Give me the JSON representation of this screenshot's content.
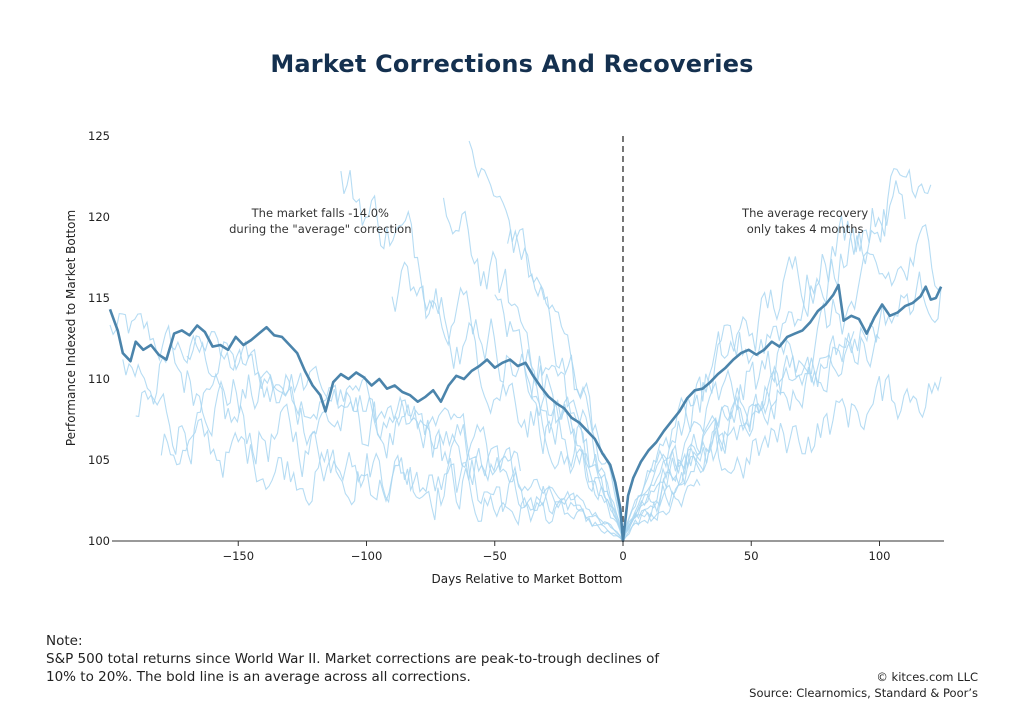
{
  "title": "Market Corrections And Recoveries",
  "chart_data": {
    "type": "line",
    "xlabel": "Days Relative to Market Bottom",
    "ylabel": "Performance Indexed to Market Bottom",
    "xlim": [
      -200,
      126
    ],
    "ylim": [
      100,
      125
    ],
    "xticks": [
      -150,
      -100,
      -50,
      0,
      50,
      100
    ],
    "xtick_labels": [
      "−150",
      "−100",
      "−50",
      "0",
      "50",
      "100"
    ],
    "yticks": [
      100,
      105,
      110,
      115,
      120,
      125
    ],
    "ytick_labels": [
      "100",
      "105",
      "110",
      "115",
      "120",
      "125"
    ],
    "grid": false,
    "marker_line": {
      "x": 0,
      "style": "dashed"
    },
    "annotations": [
      {
        "lines": [
          "The market falls -14.0%",
          "during the \"average\" correction"
        ],
        "x": -118,
        "y": 120
      },
      {
        "lines": [
          "The average recovery",
          "only takes 4 months"
        ],
        "x": 71,
        "y": 120
      }
    ],
    "colors": {
      "average": "#4b84ab",
      "individual": "#a9d6f1",
      "axis": "#333333",
      "marker": "#555555"
    },
    "average": {
      "name": "Average",
      "points": [
        [
          -200,
          114.3
        ],
        [
          -197,
          113.0
        ],
        [
          -195,
          111.6
        ],
        [
          -192,
          111.1
        ],
        [
          -190,
          112.3
        ],
        [
          -187,
          111.8
        ],
        [
          -184,
          112.1
        ],
        [
          -181,
          111.5
        ],
        [
          -178,
          111.2
        ],
        [
          -175,
          112.8
        ],
        [
          -172,
          113.0
        ],
        [
          -169,
          112.7
        ],
        [
          -166,
          113.3
        ],
        [
          -163,
          112.9
        ],
        [
          -160,
          112.0
        ],
        [
          -157,
          112.1
        ],
        [
          -154,
          111.8
        ],
        [
          -151,
          112.6
        ],
        [
          -148,
          112.1
        ],
        [
          -145,
          112.4
        ],
        [
          -142,
          112.8
        ],
        [
          -139,
          113.2
        ],
        [
          -136,
          112.7
        ],
        [
          -133,
          112.6
        ],
        [
          -130,
          112.1
        ],
        [
          -127,
          111.6
        ],
        [
          -124,
          110.5
        ],
        [
          -121,
          109.6
        ],
        [
          -118,
          109.0
        ],
        [
          -116,
          108.0
        ],
        [
          -113,
          109.8
        ],
        [
          -110,
          110.3
        ],
        [
          -107,
          110.0
        ],
        [
          -104,
          110.4
        ],
        [
          -101,
          110.1
        ],
        [
          -98,
          109.6
        ],
        [
          -95,
          110.0
        ],
        [
          -92,
          109.4
        ],
        [
          -89,
          109.6
        ],
        [
          -86,
          109.2
        ],
        [
          -83,
          109.0
        ],
        [
          -80,
          108.6
        ],
        [
          -77,
          108.9
        ],
        [
          -74,
          109.3
        ],
        [
          -71,
          108.6
        ],
        [
          -68,
          109.6
        ],
        [
          -65,
          110.2
        ],
        [
          -62,
          110.0
        ],
        [
          -59,
          110.5
        ],
        [
          -56,
          110.8
        ],
        [
          -53,
          111.2
        ],
        [
          -50,
          110.7
        ],
        [
          -47,
          111.0
        ],
        [
          -44,
          111.2
        ],
        [
          -41,
          110.8
        ],
        [
          -38,
          111.0
        ],
        [
          -35,
          110.2
        ],
        [
          -32,
          109.5
        ],
        [
          -29,
          108.9
        ],
        [
          -26,
          108.5
        ],
        [
          -23,
          108.2
        ],
        [
          -20,
          107.6
        ],
        [
          -17,
          107.3
        ],
        [
          -14,
          106.8
        ],
        [
          -11,
          106.3
        ],
        [
          -8,
          105.4
        ],
        [
          -5,
          104.7
        ],
        [
          -3,
          103.6
        ],
        [
          -1,
          102.0
        ],
        [
          0,
          100.0
        ],
        [
          2,
          102.8
        ],
        [
          4,
          103.9
        ],
        [
          7,
          104.9
        ],
        [
          10,
          105.6
        ],
        [
          13,
          106.1
        ],
        [
          16,
          106.8
        ],
        [
          19,
          107.4
        ],
        [
          22,
          108.0
        ],
        [
          25,
          108.8
        ],
        [
          28,
          109.3
        ],
        [
          31,
          109.4
        ],
        [
          34,
          109.8
        ],
        [
          37,
          110.3
        ],
        [
          40,
          110.7
        ],
        [
          43,
          111.2
        ],
        [
          46,
          111.6
        ],
        [
          49,
          111.8
        ],
        [
          52,
          111.5
        ],
        [
          55,
          111.8
        ],
        [
          58,
          112.3
        ],
        [
          61,
          112.0
        ],
        [
          64,
          112.6
        ],
        [
          67,
          112.8
        ],
        [
          70,
          113.0
        ],
        [
          73,
          113.5
        ],
        [
          76,
          114.2
        ],
        [
          79,
          114.6
        ],
        [
          82,
          115.2
        ],
        [
          84,
          115.8
        ],
        [
          86,
          113.6
        ],
        [
          89,
          113.9
        ],
        [
          92,
          113.7
        ],
        [
          95,
          112.8
        ],
        [
          98,
          113.8
        ],
        [
          101,
          114.6
        ],
        [
          104,
          113.9
        ],
        [
          107,
          114.1
        ],
        [
          110,
          114.5
        ],
        [
          113,
          114.7
        ],
        [
          116,
          115.1
        ],
        [
          118,
          115.7
        ],
        [
          120,
          114.9
        ],
        [
          122,
          115.0
        ],
        [
          124,
          115.7
        ]
      ]
    }
  },
  "note": {
    "heading": "Note:",
    "body": "S&P 500 total returns since World War II. Market corrections are peak-to-trough declines of 10% to 20%. The bold line is an average across all corrections."
  },
  "credits": {
    "line1": "© kitces.com LLC",
    "line2": "Source: Clearnomics, Standard & Poor’s"
  }
}
